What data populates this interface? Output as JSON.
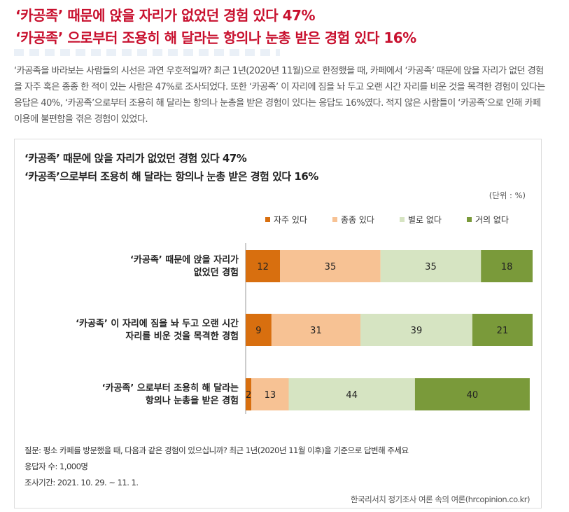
{
  "headline": {
    "line1": "‘카공족’ 때문에 앉을 자리가 없었던 경험 있다 47%",
    "line2": "‘카공족’ 으로부터 조용히 해 달라는 항의나 눈총 받은 경험 있다 16%"
  },
  "intro": "‘카공족을 바라보는 사람들의 시선은 과연 우호적일까? 최근 1년(2020년 11월)으로 한정했을 때, 카페에서 ‘카공족’ 때문에 앉을 자리가 없던 경험을 자주 혹은 종종 한 적이 있는 사람은 47%로 조사되었다. 또한 ‘카공족’ 이 자리에 짐을 놔 두고 오랜 시간 자리를 비운 것을 목격한 경험이 있다는 응답은 40%, ‘카공족’으로부터 조용히 해 달라는 항의나 눈총을 받은 경험이 있다는 응답도 16%였다. 적지 않은 사람들이 ‘카공족’으로 인해 카페 이용에 불편함을 겪은 경험이 있었다.",
  "chart_data": {
    "type": "bar",
    "orientation": "horizontal",
    "stacked": true,
    "title": "‘카공족’ 때문에 앉을 자리가 없었던 경험 있다 47%",
    "subtitle": "‘카공족’으로부터 조용히 해 달라는 항의나 눈총 받은 경험 있다 16%",
    "unit_label": "(단위 : %)",
    "categories": [
      [
        "‘카공족’ 때문에 앉을 자리가",
        "없었던 경험"
      ],
      [
        "‘카공족’ 이 자리에 짐을 놔 두고 오랜 시간",
        "자리를 비운 것을 목격한 경험"
      ],
      [
        "‘카공족’ 으로부터 조용히 해 달라는",
        "항의나 눈총을 받은 경험"
      ]
    ],
    "series": [
      {
        "name": "자주 있다",
        "color": "#d86f0f",
        "values": [
          12,
          9,
          2
        ]
      },
      {
        "name": "종종 있다",
        "color": "#f7c294",
        "values": [
          35,
          31,
          13
        ]
      },
      {
        "name": "별로 없다",
        "color": "#d6e4c2",
        "values": [
          35,
          39,
          44
        ]
      },
      {
        "name": "거의 없다",
        "color": "#7a9a3a",
        "values": [
          18,
          21,
          40
        ]
      }
    ],
    "xlim": [
      0,
      100
    ],
    "legend_position": "top",
    "grid": false
  },
  "footer": {
    "question": "질문:  평소 카페를 방문했을 때, 다음과 같은 경험이 있으십니까? 최근 1년(2020년 11월 이후)을 기준으로 답변해 주세요",
    "respondents": "응답자 수: 1,000명",
    "period": "조사기간: 2021. 10. 29. ~ 11. 1.",
    "source": "한국리서치 정기조사 여론 속의 여론(hrcopinion.co.kr)"
  }
}
